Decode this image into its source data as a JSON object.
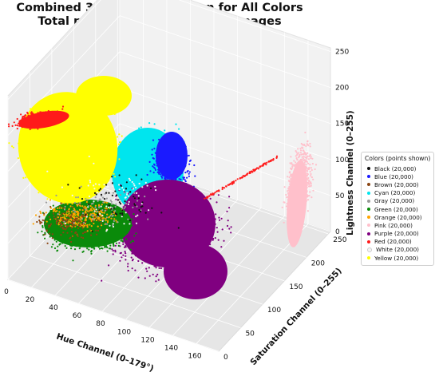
{
  "chart_data": {
    "type": "scatter",
    "title_line1": "Combined 3D HSL Distribution for All Colors",
    "title_line2": "Total points: 240,000 from 70 images",
    "xlabel": "Hue Channel (0–179°)",
    "ylabel": "Saturation Channel (0–255)",
    "zlabel": "Lightness Channel (0–255)",
    "xlim": [
      0,
      179
    ],
    "ylim": [
      0,
      255
    ],
    "zlim": [
      0,
      255
    ],
    "x_ticks": [
      "0",
      "20",
      "40",
      "60",
      "80",
      "100",
      "120",
      "140",
      "160"
    ],
    "y_ticks": [
      "0",
      "50",
      "100",
      "150",
      "200",
      "250"
    ],
    "z_ticks": [
      "0",
      "50",
      "100",
      "150",
      "200",
      "250"
    ],
    "grid": true,
    "legend_title": "Colors (points shown)",
    "legend_position": "right",
    "series": [
      {
        "name": "Black (20,000)",
        "color": "#111111",
        "points_in_legend": 20000
      },
      {
        "name": "Blue (20,000)",
        "color": "#1a1aff",
        "points_in_legend": 20000
      },
      {
        "name": "Brown (20,000)",
        "color": "#8b4513",
        "points_in_legend": 20000
      },
      {
        "name": "Cyan (20,000)",
        "color": "#00e5ee",
        "points_in_legend": 20000
      },
      {
        "name": "Gray (20,000)",
        "color": "#9a9a9a",
        "points_in_legend": 20000
      },
      {
        "name": "Green (20,000)",
        "color": "#0a8a0a",
        "points_in_legend": 20000
      },
      {
        "name": "Orange (20,000)",
        "color": "#ffa500",
        "points_in_legend": 20000
      },
      {
        "name": "Pink (20,000)",
        "color": "#ffc0cb",
        "points_in_legend": 20000
      },
      {
        "name": "Purple (20,000)",
        "color": "#800080",
        "points_in_legend": 20000
      },
      {
        "name": "Red (20,000)",
        "color": "#ff1a1a",
        "points_in_legend": 20000
      },
      {
        "name": "White (20,000)",
        "color": "#f4f4f4",
        "points_in_legend": 20000
      },
      {
        "name": "Yellow (20,000)",
        "color": "#ffff00",
        "points_in_legend": 20000
      }
    ]
  }
}
